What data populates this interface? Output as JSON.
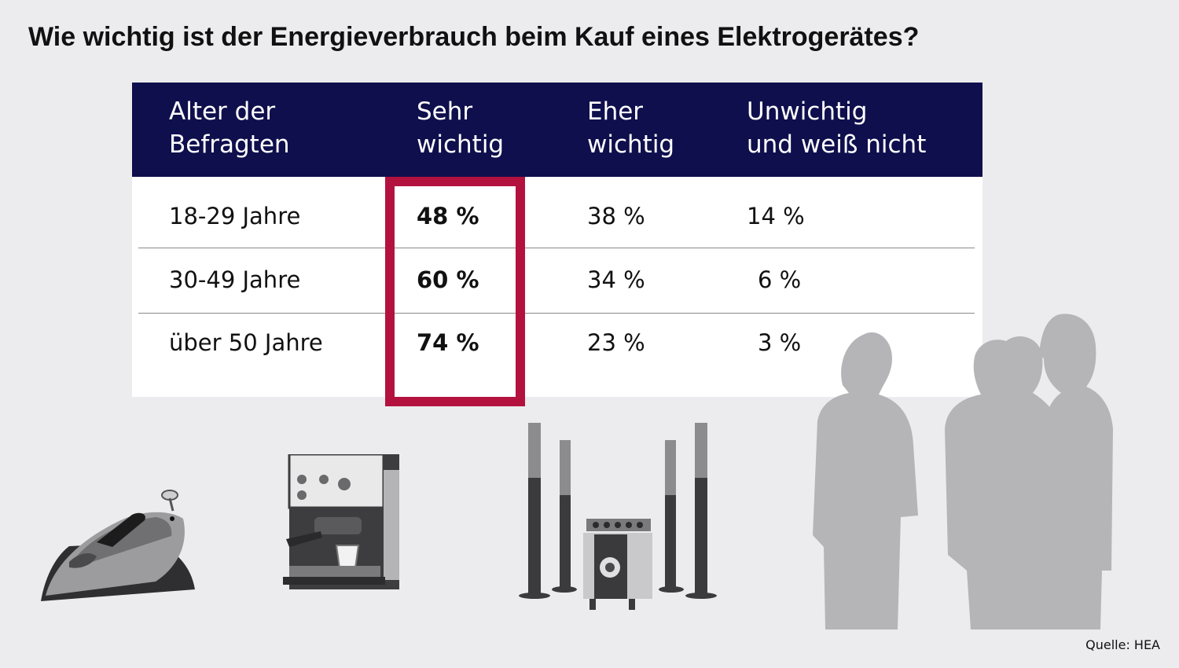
{
  "title": "Wie wichtig ist der Energieverbrauch beim Kauf eines Elektrogerätes?",
  "chart_data": {
    "type": "table",
    "header": {
      "age": [
        "Alter der",
        "Befragten"
      ],
      "very_important": [
        "Sehr",
        "wichtig"
      ],
      "rather_important": [
        "Eher",
        "wichtig"
      ],
      "unimportant": [
        "Unwichtig",
        "und weiß nicht"
      ]
    },
    "rows": [
      {
        "age": "18-29 Jahre",
        "very_important": "48 %",
        "rather_important": "38 %",
        "unimportant": "14 %"
      },
      {
        "age": "30-49 Jahre",
        "very_important": "60 %",
        "rather_important": "34 %",
        "unimportant": "6 %"
      },
      {
        "age": "über 50 Jahre",
        "very_important": "74 %",
        "rather_important": "23 %",
        "unimportant": "3 %"
      }
    ],
    "highlight_column": "very_important"
  },
  "colors": {
    "header_bg": "#0f0f4d",
    "highlight": "#b3123f",
    "background": "#ececee",
    "silhouette": "#b5b5b7"
  },
  "illustrations": [
    "iron-icon",
    "espresso-machine-icon",
    "home-theater-icon",
    "people-silhouette"
  ],
  "source": "Quelle: HEA"
}
